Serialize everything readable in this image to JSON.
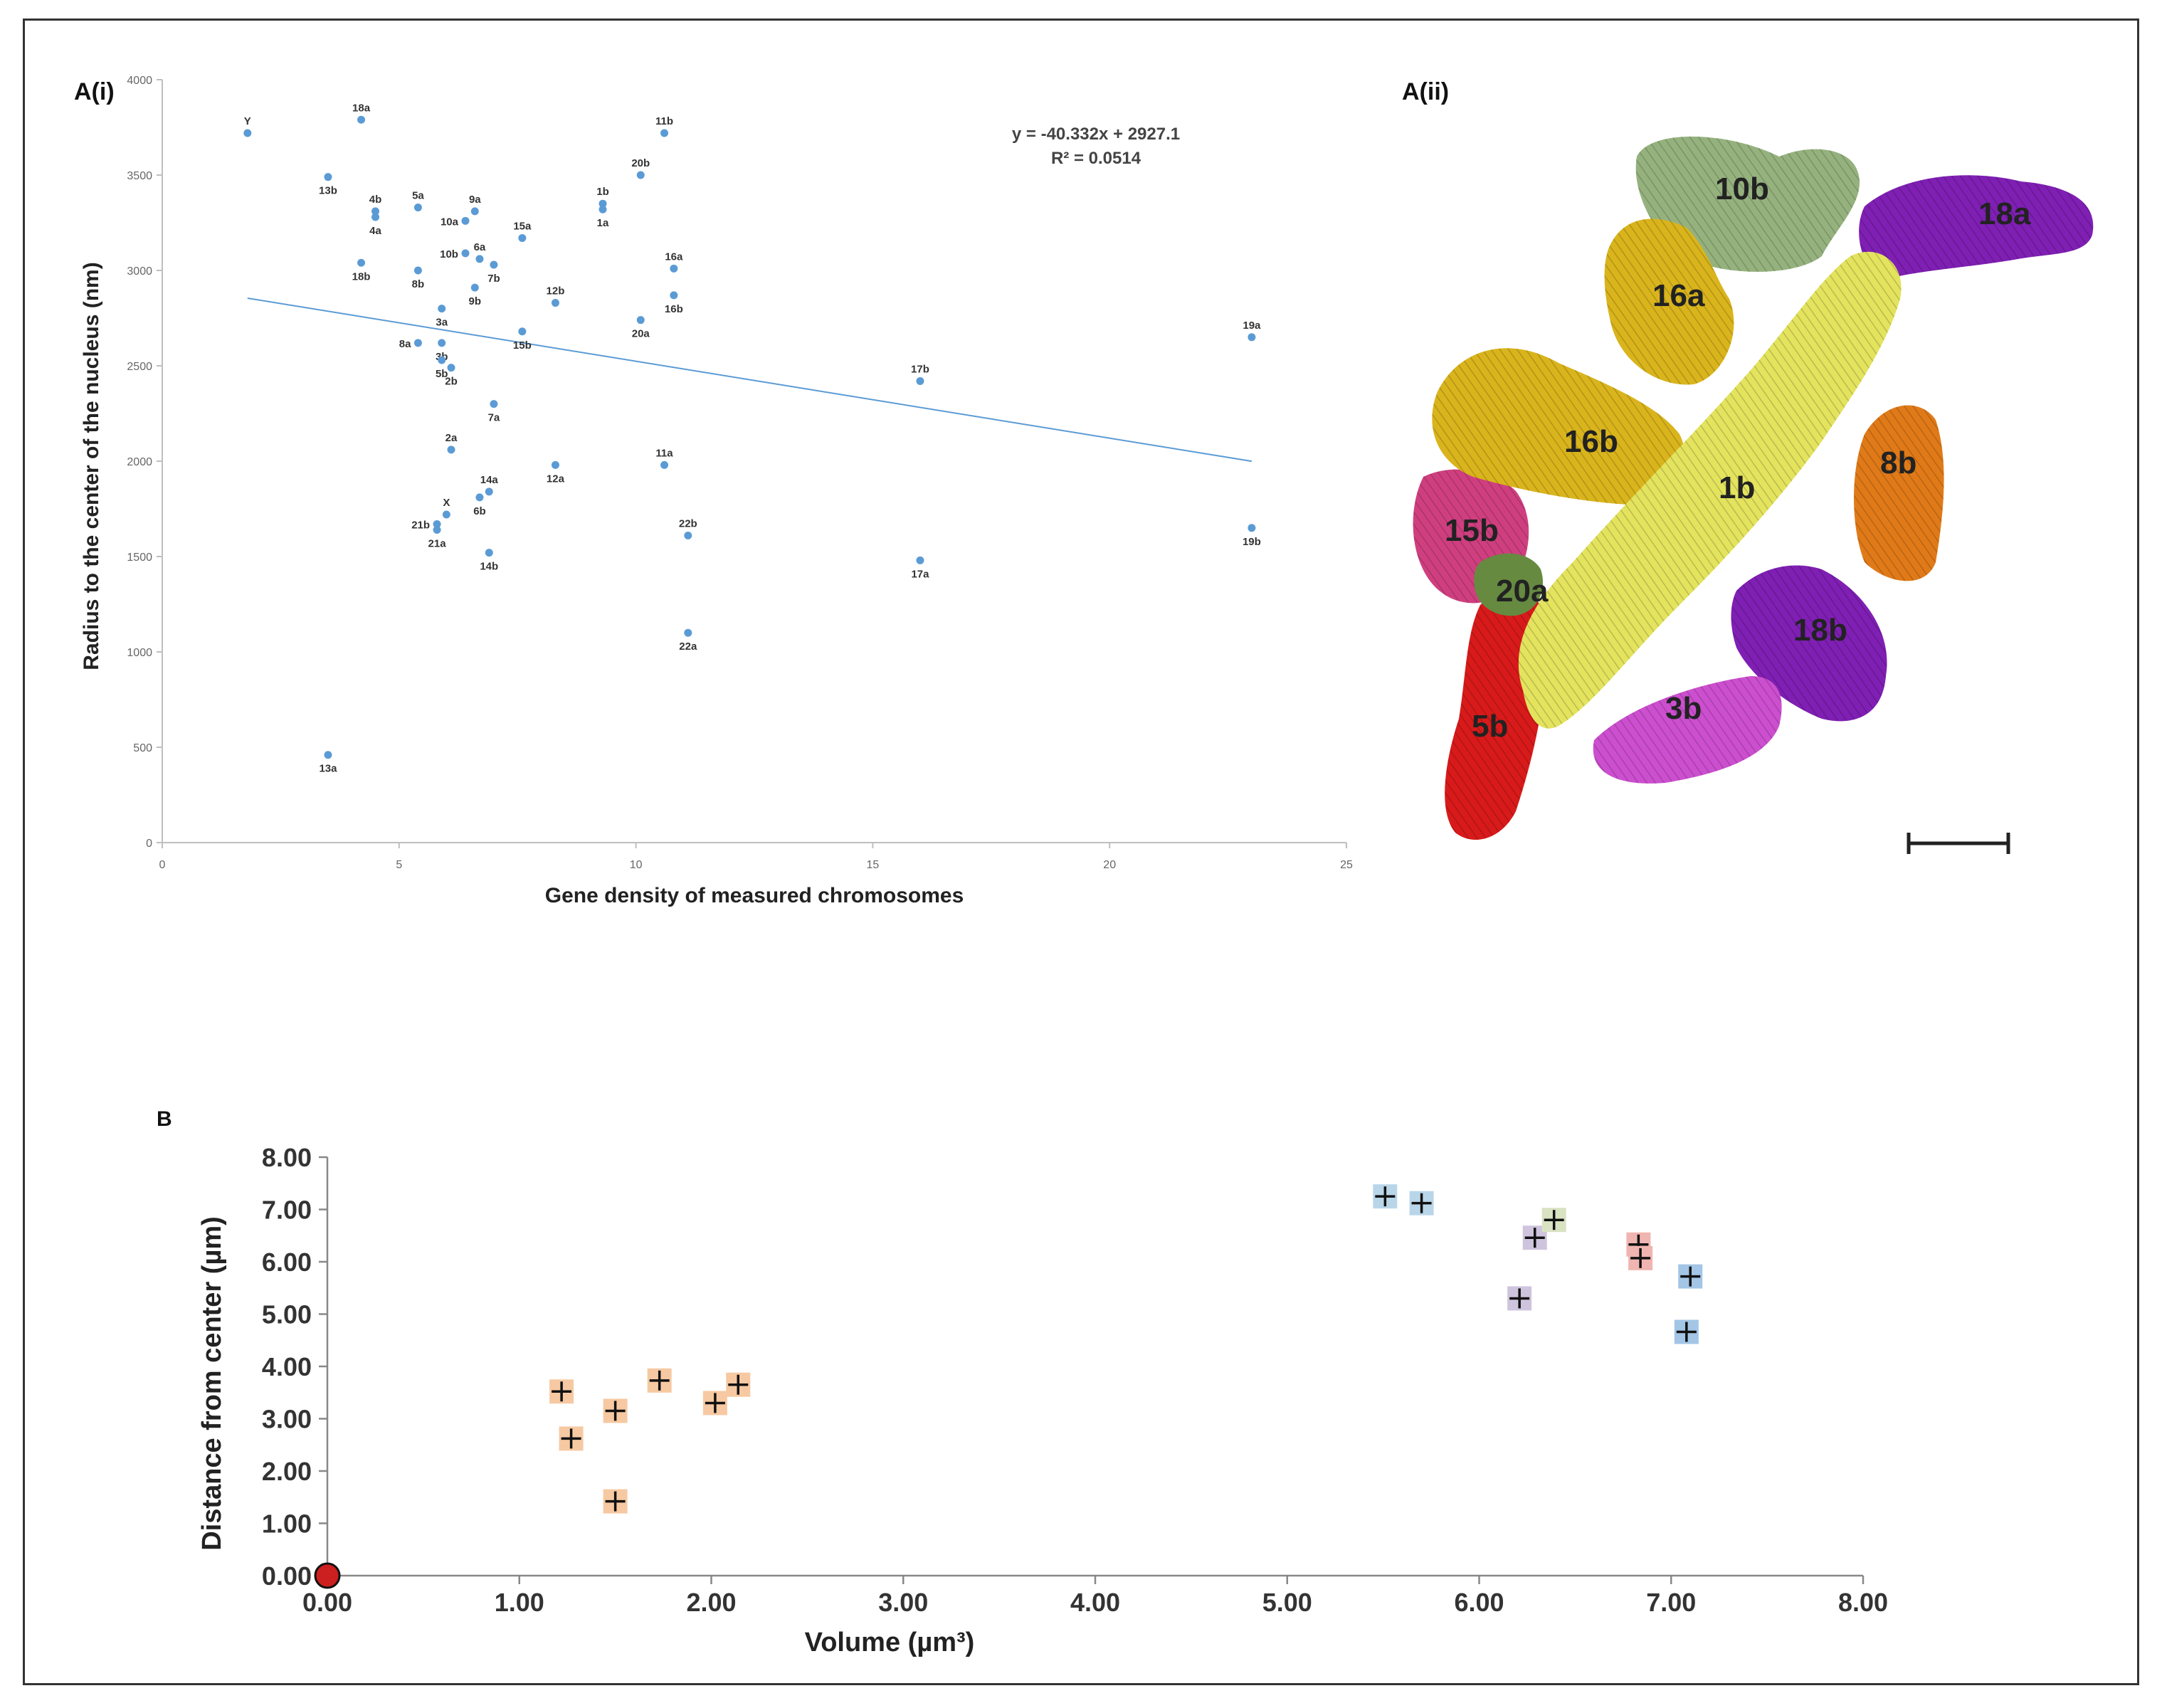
{
  "colors": {
    "point_ai": "#5b9bd5",
    "trend": "#5b9bd5",
    "origin": "#cc1f1f",
    "c1b": "#d7d75a",
    "c16": "#d9b41c",
    "c10b": "#95b27e",
    "c18": "#7f1fb3",
    "c8b": "#e07a18",
    "c15b": "#cf3f7f",
    "c5b": "#d81a1a",
    "c3b": "#cc4fcf",
    "c20a": "#668a40",
    "b_orange": "#f6c9a2",
    "b_lightblue": "#b9d6e9",
    "b_blue": "#a3c5e6",
    "b_pink": "#f0b5b0",
    "b_lavender": "#cfc4dd",
    "b_green": "#d9e2c2"
  },
  "chart_data": [
    {
      "type": "scatter",
      "panel_label": "A(i)",
      "title": "",
      "xlabel": "Gene density of measured chromosomes",
      "ylabel": "Radius to the center of the nucleus (nm)",
      "xlim": [
        0,
        25
      ],
      "ylim": [
        0,
        4000
      ],
      "x_ticks": [
        0,
        5,
        10,
        15,
        20,
        25
      ],
      "y_ticks": [
        0,
        500,
        1000,
        1500,
        2000,
        2500,
        3000,
        3500,
        4000
      ],
      "grid": false,
      "trendline": {
        "slope": -40.332,
        "intercept": 2927.1,
        "x_range": [
          1.8,
          23
        ]
      },
      "equation": "y = -40.332x + 2927.1",
      "r_squared": "R² = 0.0514",
      "points": [
        {
          "label": "Y",
          "x": 1.8,
          "y": 3720
        },
        {
          "label": "18a",
          "x": 4.2,
          "y": 3790
        },
        {
          "label": "13b",
          "x": 3.5,
          "y": 3490
        },
        {
          "label": "4b",
          "x": 4.5,
          "y": 3310
        },
        {
          "label": "4a",
          "x": 4.5,
          "y": 3280
        },
        {
          "label": "5a",
          "x": 5.4,
          "y": 3330
        },
        {
          "label": "9a",
          "x": 6.6,
          "y": 3310
        },
        {
          "label": "10a",
          "x": 6.4,
          "y": 3260
        },
        {
          "label": "18b",
          "x": 4.2,
          "y": 3040
        },
        {
          "label": "10b",
          "x": 6.4,
          "y": 3090
        },
        {
          "label": "6a",
          "x": 6.7,
          "y": 3060
        },
        {
          "label": "7b",
          "x": 7.0,
          "y": 3030
        },
        {
          "label": "15a",
          "x": 7.6,
          "y": 3170
        },
        {
          "label": "8b",
          "x": 5.4,
          "y": 3000
        },
        {
          "label": "9b",
          "x": 6.6,
          "y": 2910
        },
        {
          "label": "3a",
          "x": 5.9,
          "y": 2800
        },
        {
          "label": "12b",
          "x": 8.3,
          "y": 2830
        },
        {
          "label": "1b",
          "x": 9.3,
          "y": 3350
        },
        {
          "label": "1a",
          "x": 9.3,
          "y": 3320
        },
        {
          "label": "11b",
          "x": 10.6,
          "y": 3720
        },
        {
          "label": "20b",
          "x": 10.1,
          "y": 3500
        },
        {
          "label": "16a",
          "x": 10.8,
          "y": 3010
        },
        {
          "label": "16b",
          "x": 10.8,
          "y": 2870
        },
        {
          "label": "20a",
          "x": 10.1,
          "y": 2740
        },
        {
          "label": "8a",
          "x": 5.4,
          "y": 2620
        },
        {
          "label": "3b",
          "x": 5.9,
          "y": 2620
        },
        {
          "label": "15b",
          "x": 7.6,
          "y": 2680
        },
        {
          "label": "5b",
          "x": 5.9,
          "y": 2530
        },
        {
          "label": "2b",
          "x": 6.1,
          "y": 2490
        },
        {
          "label": "7a",
          "x": 7.0,
          "y": 2300
        },
        {
          "label": "2a",
          "x": 6.1,
          "y": 2060
        },
        {
          "label": "12a",
          "x": 8.3,
          "y": 1980
        },
        {
          "label": "11a",
          "x": 10.6,
          "y": 1980
        },
        {
          "label": "X",
          "x": 6.0,
          "y": 1720
        },
        {
          "label": "21b",
          "x": 5.8,
          "y": 1670
        },
        {
          "label": "21a",
          "x": 5.8,
          "y": 1640
        },
        {
          "label": "14a",
          "x": 6.9,
          "y": 1840
        },
        {
          "label": "6b",
          "x": 6.7,
          "y": 1810
        },
        {
          "label": "14b",
          "x": 6.9,
          "y": 1520
        },
        {
          "label": "22b",
          "x": 11.1,
          "y": 1610
        },
        {
          "label": "22a",
          "x": 11.1,
          "y": 1100
        },
        {
          "label": "17b",
          "x": 16.0,
          "y": 2420
        },
        {
          "label": "17a",
          "x": 16.0,
          "y": 1480
        },
        {
          "label": "19a",
          "x": 23.0,
          "y": 2650
        },
        {
          "label": "19b",
          "x": 23.0,
          "y": 1650
        },
        {
          "label": "13a",
          "x": 3.5,
          "y": 460
        }
      ]
    },
    {
      "type": "scatter",
      "panel_label": "B",
      "title": "",
      "xlabel": "Volume (µm³)",
      "ylabel": "Distance from center (µm)",
      "xlim": [
        0,
        8
      ],
      "ylim": [
        0,
        8
      ],
      "x_ticks": [
        "0.00",
        "1.00",
        "2.00",
        "3.00",
        "4.00",
        "5.00",
        "6.00",
        "7.00",
        "8.00"
      ],
      "y_ticks": [
        "0.00",
        "1.00",
        "2.00",
        "3.00",
        "4.00",
        "5.00",
        "6.00",
        "7.00",
        "8.00"
      ],
      "grid": false,
      "origin_marker": {
        "x": 0,
        "y": 0
      },
      "points": [
        {
          "x": 1.22,
          "y": 3.52,
          "color": "b_orange"
        },
        {
          "x": 1.27,
          "y": 2.62,
          "color": "b_orange"
        },
        {
          "x": 1.5,
          "y": 3.15,
          "color": "b_orange"
        },
        {
          "x": 1.5,
          "y": 1.42,
          "color": "b_orange"
        },
        {
          "x": 1.73,
          "y": 3.73,
          "color": "b_orange"
        },
        {
          "x": 2.02,
          "y": 3.3,
          "color": "b_orange"
        },
        {
          "x": 2.14,
          "y": 3.65,
          "color": "b_orange"
        },
        {
          "x": 5.51,
          "y": 7.25,
          "color": "b_lightblue"
        },
        {
          "x": 5.7,
          "y": 7.12,
          "color": "b_lightblue"
        },
        {
          "x": 6.21,
          "y": 5.3,
          "color": "b_lavender"
        },
        {
          "x": 6.29,
          "y": 6.46,
          "color": "b_lavender"
        },
        {
          "x": 6.39,
          "y": 6.8,
          "color": "b_green"
        },
        {
          "x": 6.83,
          "y": 6.33,
          "color": "b_pink"
        },
        {
          "x": 6.84,
          "y": 6.07,
          "color": "b_pink"
        },
        {
          "x": 7.08,
          "y": 4.66,
          "color": "b_blue"
        },
        {
          "x": 7.1,
          "y": 5.72,
          "color": "b_blue"
        }
      ]
    }
  ],
  "render_3d": {
    "panel_label": "A(ii)",
    "labels": [
      "10b",
      "18a",
      "16a",
      "16b",
      "8b",
      "1b",
      "15b",
      "20a",
      "18b",
      "3b",
      "5b"
    ]
  }
}
